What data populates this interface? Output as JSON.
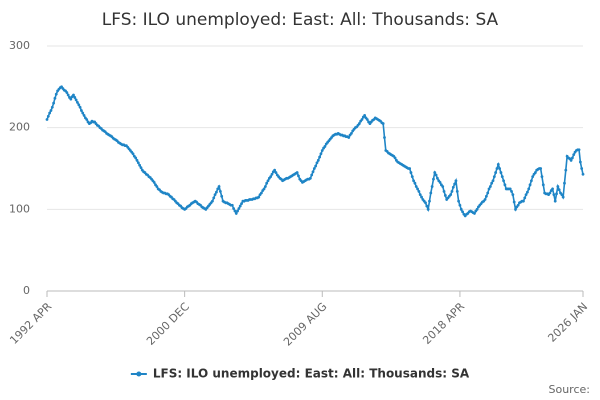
{
  "chart_data": {
    "type": "line",
    "title": "LFS: ILO unemployed: East: All: Thousands: SA",
    "source": "Source:",
    "categories": [
      "1992 APR",
      null,
      null,
      null,
      null,
      null,
      null,
      null,
      null,
      null,
      null,
      null,
      null,
      null,
      null,
      null,
      null,
      null,
      null,
      null,
      null,
      null,
      null,
      null,
      null,
      null,
      null,
      null,
      null,
      null,
      null,
      null,
      null,
      null,
      null,
      null,
      null,
      null,
      null,
      null,
      null,
      null,
      null,
      null,
      null,
      null,
      null,
      null,
      null,
      null,
      null,
      null,
      null,
      null,
      null,
      null,
      null,
      null,
      null,
      null,
      null,
      null,
      null,
      null,
      null,
      null,
      null,
      null,
      null,
      null,
      null,
      null,
      null,
      null,
      null,
      null,
      null,
      null,
      null,
      null,
      null,
      null,
      null,
      null,
      null,
      null,
      null,
      null,
      null,
      null,
      null,
      null,
      null,
      null,
      null,
      null,
      null,
      null,
      null,
      null,
      null,
      null,
      null,
      null,
      "2000 DEC",
      null,
      null,
      null,
      null,
      null,
      null,
      null,
      null,
      null,
      null,
      null,
      null,
      null,
      null,
      null,
      null,
      null,
      null,
      null,
      null,
      null,
      null,
      null,
      null,
      null,
      null,
      null,
      null,
      null,
      null,
      null,
      null,
      null,
      null,
      null,
      null,
      null,
      null,
      null,
      null,
      null,
      null,
      null,
      null,
      null,
      null,
      null,
      null,
      null,
      null,
      null,
      null,
      null,
      null,
      null,
      null,
      null,
      null,
      null,
      null,
      null,
      null,
      null,
      null,
      null,
      null,
      null,
      null,
      null,
      null,
      null,
      null,
      null,
      null,
      null,
      null,
      null,
      null,
      null,
      null,
      null,
      null,
      null,
      null,
      null,
      null,
      null,
      null,
      null,
      null,
      null,
      null,
      null,
      null,
      null,
      null,
      null,
      null,
      null,
      null,
      null,
      null,
      null,
      "2009 AUG",
      null,
      null,
      null,
      null,
      null,
      null,
      null,
      null,
      null,
      null,
      null,
      null,
      null,
      null,
      null,
      null,
      null,
      null,
      null,
      null,
      null,
      null,
      null,
      null,
      null,
      null,
      null,
      null,
      null,
      null,
      null,
      null,
      null,
      null,
      null,
      null,
      null,
      null,
      null,
      null,
      null,
      null,
      null,
      null,
      null,
      null,
      null,
      null,
      null,
      null,
      null,
      null,
      null,
      null,
      null,
      null,
      null,
      null,
      null,
      null,
      null,
      null,
      null,
      null,
      null,
      null,
      null,
      null,
      null,
      null,
      null,
      null,
      null,
      null,
      null,
      null,
      null,
      null,
      null,
      null,
      null,
      null,
      null,
      null,
      null,
      null,
      null,
      null,
      null,
      null,
      null,
      null,
      null,
      null,
      null,
      null,
      null,
      null,
      null,
      null,
      null,
      null,
      null,
      "2018 APR",
      null,
      null,
      null,
      null,
      null,
      null,
      null,
      null,
      null,
      null,
      null,
      null,
      null,
      null,
      null,
      null,
      null,
      null,
      null,
      null,
      null,
      null,
      null,
      null,
      null,
      null,
      null,
      null,
      null,
      null,
      null,
      null,
      null,
      null,
      null,
      null,
      null,
      null,
      null,
      null,
      null,
      null,
      null,
      null,
      null,
      null,
      null,
      null,
      null,
      null,
      null,
      null,
      null,
      null,
      null,
      null,
      null,
      null,
      null,
      null,
      null,
      null,
      null,
      null,
      null,
      null,
      null,
      null,
      null,
      null,
      null,
      null,
      null,
      null,
      null,
      null,
      null,
      null,
      null,
      null,
      null,
      null,
      null,
      null,
      null,
      null,
      null,
      null,
      null,
      null,
      null,
      null,
      "2026 JAN"
    ],
    "series": [
      {
        "name": "LFS: ILO unemployed: East: All: Thousands: SA",
        "color": "#1f85c6",
        "values": [
          210,
          214,
          218,
          221,
          225,
          230,
          236,
          241,
          245,
          247,
          249,
          250,
          248,
          246,
          245,
          243,
          240,
          237,
          235,
          238,
          240,
          237,
          234,
          231,
          228,
          225,
          221,
          218,
          215,
          212,
          210,
          207,
          205,
          206,
          208,
          207,
          207,
          205,
          203,
          202,
          200,
          199,
          197,
          196,
          195,
          193,
          192,
          191,
          190,
          189,
          187,
          186,
          185,
          184,
          182,
          181,
          180,
          179,
          179,
          178,
          178,
          176,
          174,
          172,
          170,
          168,
          165,
          163,
          160,
          157,
          154,
          151,
          148,
          146,
          145,
          143,
          142,
          140,
          139,
          137,
          135,
          133,
          130,
          128,
          125,
          124,
          122,
          121,
          120,
          120,
          119,
          119,
          118,
          116,
          115,
          113,
          112,
          110,
          108,
          107,
          105,
          104,
          102,
          101,
          100,
          101,
          103,
          104,
          105,
          107,
          108,
          109,
          110,
          109,
          107,
          106,
          105,
          103,
          102,
          101,
          100,
          102,
          104,
          106,
          108,
          110,
          114,
          118,
          121,
          125,
          128,
          122,
          116,
          110,
          109,
          108,
          108,
          107,
          106,
          105,
          105,
          101,
          98,
          95,
          98,
          101,
          104,
          107,
          110,
          110,
          111,
          111,
          111,
          112,
          112,
          112,
          113,
          113,
          114,
          114,
          115,
          118,
          120,
          123,
          125,
          128,
          132,
          135,
          138,
          140,
          143,
          146,
          148,
          145,
          142,
          140,
          138,
          137,
          135,
          136,
          137,
          138,
          138,
          139,
          140,
          141,
          142,
          143,
          144,
          145,
          141,
          137,
          135,
          133,
          134,
          135,
          136,
          137,
          137,
          138,
          142,
          146,
          150,
          153,
          157,
          160,
          164,
          168,
          172,
          175,
          177,
          180,
          182,
          184,
          186,
          188,
          190,
          191,
          192,
          192,
          193,
          192,
          191,
          191,
          190,
          190,
          189,
          189,
          188,
          191,
          193,
          196,
          198,
          200,
          201,
          203,
          205,
          208,
          210,
          213,
          215,
          212,
          210,
          207,
          205,
          207,
          209,
          210,
          212,
          211,
          210,
          209,
          208,
          206,
          205,
          188,
          172,
          171,
          169,
          168,
          167,
          166,
          165,
          163,
          160,
          158,
          157,
          156,
          155,
          154,
          153,
          152,
          151,
          150,
          150,
          145,
          140,
          135,
          132,
          128,
          125,
          122,
          118,
          115,
          112,
          110,
          108,
          104,
          100,
          110,
          120,
          128,
          137,
          145,
          142,
          138,
          135,
          133,
          130,
          128,
          122,
          117,
          112,
          114,
          116,
          118,
          122,
          127,
          131,
          135,
          122,
          110,
          105,
          100,
          97,
          94,
          92,
          94,
          95,
          97,
          98,
          97,
          96,
          95,
          98,
          100,
          103,
          105,
          107,
          109,
          110,
          112,
          116,
          120,
          125,
          128,
          132,
          135,
          140,
          145,
          150,
          155,
          150,
          145,
          140,
          135,
          130,
          125,
          125,
          125,
          125,
          122,
          118,
          109,
          100,
          103,
          105,
          108,
          109,
          110,
          110,
          114,
          118,
          121,
          125,
          130,
          135,
          140,
          143,
          145,
          148,
          149,
          150,
          150,
          140,
          130,
          120,
          119,
          119,
          118,
          120,
          123,
          125,
          118,
          110,
          119,
          128,
          124,
          120,
          118,
          115,
          132,
          148,
          165,
          163,
          162,
          160,
          163,
          167,
          170,
          172,
          173,
          173,
          158,
          150,
          143
        ]
      }
    ],
    "ylim": [
      0,
      300
    ],
    "yticks": [
      0,
      100,
      200,
      300
    ],
    "grid": true
  }
}
